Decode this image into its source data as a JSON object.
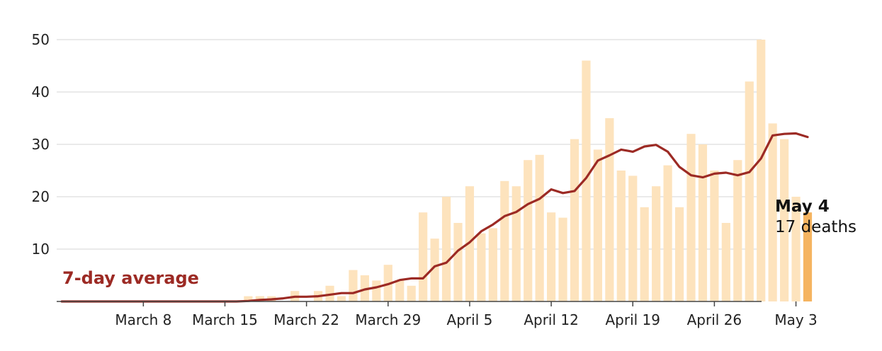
{
  "chart_data": {
    "type": "bar",
    "title": "",
    "xlabel": "",
    "ylabel": "",
    "ylim": [
      0,
      50
    ],
    "y_ticks": [
      10,
      20,
      30,
      40,
      50
    ],
    "grid": true,
    "x_tick_labels": [
      "March 8",
      "March 15",
      "March 22",
      "March 29",
      "April 5",
      "April 12",
      "April 19",
      "April 26",
      "May 3"
    ],
    "x_tick_dates": [
      "2020-03-08",
      "2020-03-15",
      "2020-03-22",
      "2020-03-29",
      "2020-04-05",
      "2020-04-12",
      "2020-04-19",
      "2020-04-26",
      "2020-05-03"
    ],
    "dates": [
      "2020-03-01",
      "2020-03-02",
      "2020-03-03",
      "2020-03-04",
      "2020-03-05",
      "2020-03-06",
      "2020-03-07",
      "2020-03-08",
      "2020-03-09",
      "2020-03-10",
      "2020-03-11",
      "2020-03-12",
      "2020-03-13",
      "2020-03-14",
      "2020-03-15",
      "2020-03-16",
      "2020-03-17",
      "2020-03-18",
      "2020-03-19",
      "2020-03-20",
      "2020-03-21",
      "2020-03-22",
      "2020-03-23",
      "2020-03-24",
      "2020-03-25",
      "2020-03-26",
      "2020-03-27",
      "2020-03-28",
      "2020-03-29",
      "2020-03-30",
      "2020-03-31",
      "2020-04-01",
      "2020-04-02",
      "2020-04-03",
      "2020-04-04",
      "2020-04-05",
      "2020-04-06",
      "2020-04-07",
      "2020-04-08",
      "2020-04-09",
      "2020-04-10",
      "2020-04-11",
      "2020-04-12",
      "2020-04-13",
      "2020-04-14",
      "2020-04-15",
      "2020-04-16",
      "2020-04-17",
      "2020-04-18",
      "2020-04-19",
      "2020-04-20",
      "2020-04-21",
      "2020-04-22",
      "2020-04-23",
      "2020-04-24",
      "2020-04-25",
      "2020-04-26",
      "2020-04-27",
      "2020-04-28",
      "2020-04-29",
      "2020-04-30",
      "2020-05-01",
      "2020-05-02",
      "2020-05-03",
      "2020-05-04"
    ],
    "series": [
      {
        "kind": "bar",
        "values": [
          0,
          0,
          0,
          0,
          0,
          0,
          0,
          0,
          0,
          0,
          0,
          0,
          0,
          0,
          0,
          0,
          1,
          1,
          1,
          0,
          2,
          0,
          2,
          3,
          1,
          6,
          5,
          4,
          7,
          4,
          3,
          17,
          12,
          20,
          15,
          22,
          13,
          14,
          23,
          22,
          27,
          28,
          17,
          16,
          31,
          46,
          29,
          35,
          25,
          24,
          18,
          22,
          26,
          18,
          32,
          30,
          25,
          15,
          27,
          42,
          50,
          34,
          31,
          20,
          17
        ],
        "color": "#fde3bd"
      },
      {
        "kind": "line",
        "name": "7-day average",
        "values": [
          0,
          0,
          0,
          0,
          0,
          0,
          0,
          0,
          0,
          0,
          0,
          0,
          0,
          0,
          0,
          0,
          0.1,
          0.3,
          0.4,
          0.6,
          0.9,
          0.9,
          1.0,
          1.3,
          1.6,
          1.6,
          2.3,
          2.7,
          3.3,
          4.1,
          4.4,
          4.4,
          6.7,
          7.4,
          9.7,
          11.3,
          13.4,
          14.7,
          16.3,
          17.1,
          18.6,
          19.6,
          21.4,
          20.7,
          21.1,
          23.6,
          26.9,
          27.9,
          29.0,
          28.6,
          29.6,
          29.9,
          28.6,
          25.7,
          24.1,
          23.7,
          24.4,
          24.6,
          24.1,
          24.7,
          27.3,
          31.7,
          32.0,
          32.1,
          31.4
        ]
      }
    ],
    "highlight": {
      "index": 64,
      "color": "#f5b461"
    },
    "avg_line_color": "#9c2a24",
    "avg_label": "7-day average",
    "callout": {
      "date": "May 4",
      "value": "17 deaths"
    }
  }
}
